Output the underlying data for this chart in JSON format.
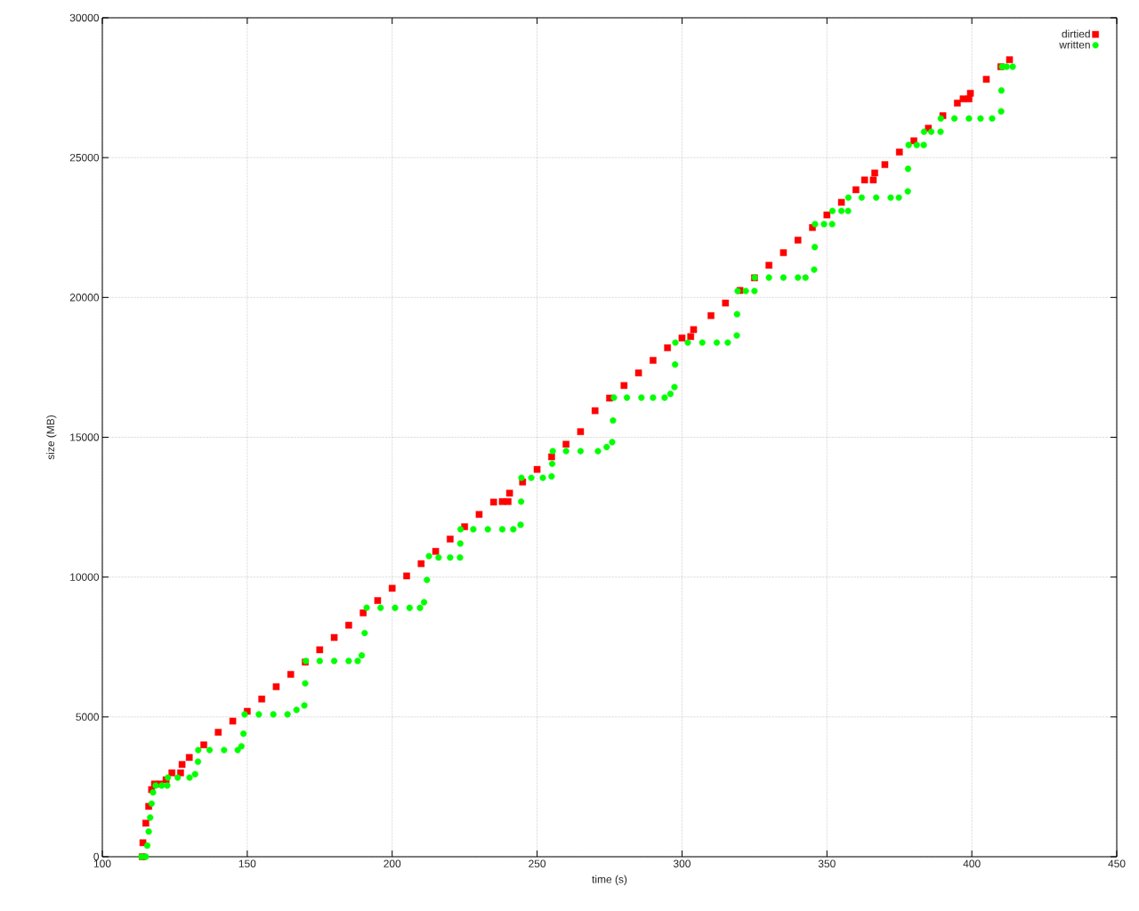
{
  "chart_data": {
    "type": "scatter",
    "xlabel": "time (s)",
    "ylabel": "size (MB)",
    "xlim": [
      100,
      450
    ],
    "xticks": [
      100,
      150,
      200,
      250,
      300,
      350,
      400,
      450
    ],
    "ylim": [
      0,
      30000
    ],
    "yticks": [
      0,
      5000,
      10000,
      15000,
      20000,
      25000,
      30000
    ],
    "grid": true,
    "legend": "top right",
    "series": [
      {
        "name": "dirtied",
        "color": "#ff0000",
        "marker": "square",
        "x": [
          113.8,
          114,
          115,
          116,
          117,
          118,
          120,
          122,
          124,
          127,
          127.5,
          130,
          135,
          140,
          145,
          150,
          155,
          160,
          165,
          170,
          175,
          180,
          185,
          190,
          195,
          200,
          205,
          210,
          215,
          220,
          225,
          230,
          235,
          238,
          240,
          240.5,
          245,
          250,
          255,
          260,
          265,
          270,
          275,
          280,
          285,
          290,
          295,
          300,
          303,
          304,
          310,
          315,
          320,
          325,
          330,
          335,
          340,
          345,
          350,
          355,
          360,
          363,
          366,
          366.5,
          370,
          375,
          380,
          385,
          390,
          395,
          397,
          399,
          399.5,
          405,
          410,
          413
        ],
        "values": [
          0,
          500,
          1200,
          1800,
          2400,
          2600,
          2600,
          2750,
          3000,
          3000,
          3300,
          3550,
          4000,
          4450,
          4850,
          5200,
          5640,
          6080,
          6520,
          6960,
          7400,
          7840,
          8280,
          8720,
          9160,
          9600,
          10040,
          10480,
          10920,
          11360,
          11800,
          12240,
          12680,
          12700,
          12700,
          13000,
          13400,
          13850,
          14300,
          14750,
          15200,
          15950,
          16400,
          16850,
          17300,
          17750,
          18200,
          18550,
          18600,
          18850,
          19350,
          19800,
          20250,
          20700,
          21150,
          21600,
          22050,
          22500,
          22950,
          23400,
          23850,
          24200,
          24200,
          24450,
          24750,
          25200,
          25600,
          26050,
          26500,
          26950,
          27100,
          27100,
          27300,
          27800,
          28250,
          28500
        ]
      },
      {
        "name": "written",
        "color": "#00ff00",
        "marker": "circle",
        "x": [
          113.5,
          115,
          115.5,
          116,
          116.5,
          117,
          117.5,
          118.4,
          120.5,
          122.4,
          122.6,
          126,
          130.1,
          132,
          133,
          133.1,
          137,
          142,
          146.7,
          148,
          148.7,
          149.1,
          154,
          159,
          163.9,
          167,
          169.7,
          170,
          170.2,
          175,
          180,
          185,
          188.1,
          189.5,
          190.5,
          191.2,
          196,
          201,
          206,
          209.6,
          211,
          212,
          212.7,
          216,
          220,
          223.4,
          223.5,
          223.6,
          228,
          233,
          238,
          241.8,
          244.3,
          244.5,
          244.6,
          248,
          252,
          255,
          255.2,
          255.4,
          260,
          265,
          271,
          274,
          275.9,
          276.2,
          276.5,
          281,
          286,
          290,
          294,
          296,
          297.4,
          297.6,
          297.7,
          302,
          307,
          312,
          315.8,
          318.9,
          319,
          319.2,
          322,
          325,
          325.1,
          330,
          335,
          340,
          342.6,
          345.6,
          345.8,
          345.9,
          349,
          351.8,
          351.9,
          355,
          357.3,
          357.4,
          362,
          367,
          372,
          374.8,
          377.9,
          378,
          378.2,
          381,
          383.4,
          383.5,
          386,
          389.2,
          389.3,
          394,
          399,
          403,
          407,
          410.1,
          410.2,
          410.4,
          412,
          414.1
        ],
        "values": [
          0,
          0,
          400,
          900,
          1400,
          1900,
          2300,
          2545,
          2545,
          2545,
          2830,
          2830,
          2830,
          2950,
          3400,
          3815,
          3815,
          3815,
          3815,
          3950,
          4400,
          5090,
          5090,
          5090,
          5090,
          5250,
          5410,
          6200,
          7000,
          7000,
          7000,
          7000,
          7000,
          7200,
          8000,
          8905,
          8900,
          8900,
          8900,
          8900,
          9100,
          9900,
          10750,
          10700,
          10700,
          10700,
          11200,
          11710,
          11710,
          11710,
          11710,
          11710,
          11870,
          12700,
          13550,
          13550,
          13550,
          13600,
          14050,
          14505,
          14505,
          14505,
          14505,
          14650,
          14825,
          15600,
          16415,
          16415,
          16415,
          16415,
          16415,
          16550,
          16795,
          17600,
          18385,
          18385,
          18385,
          18385,
          18385,
          18640,
          19400,
          20230,
          20230,
          20230,
          20710,
          20710,
          20710,
          20710,
          20710,
          20995,
          21800,
          22620,
          22620,
          22620,
          23095,
          23095,
          23095,
          23570,
          23570,
          23570,
          23570,
          23570,
          23795,
          24600,
          25450,
          25450,
          25450,
          25925,
          25925,
          25925,
          26400,
          26400,
          26400,
          26400,
          26400,
          26655,
          27400,
          28250,
          28250,
          28250
        ]
      }
    ]
  }
}
